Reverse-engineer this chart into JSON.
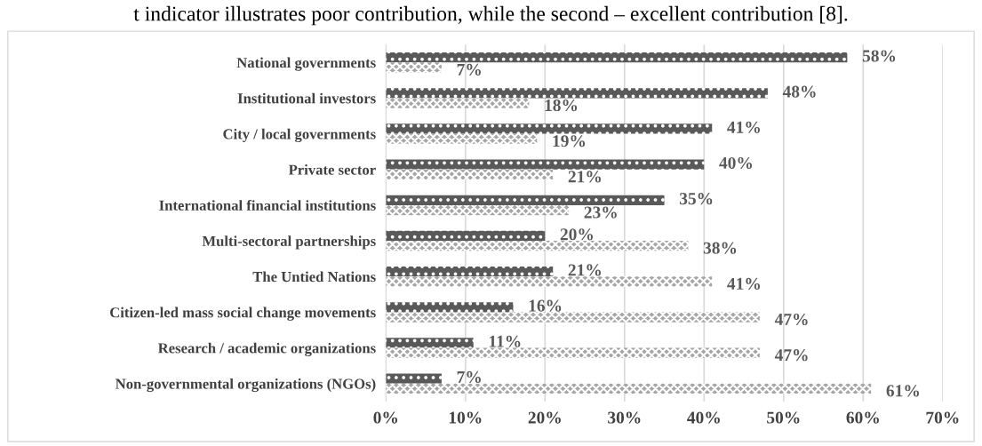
{
  "chart_data": {
    "type": "bar",
    "orientation": "horizontal",
    "categories": [
      "National governments",
      "Institutional investors",
      "City / local governments",
      "Private sector",
      "International financial institutions",
      "Multi-sectoral partnerships",
      "The Untied Nations",
      "Citizen-led mass social change movements",
      "Research / academic organizations",
      "Non-governmental organizations (NGOs)"
    ],
    "series": [
      {
        "color": "#595959",
        "values": [
          58,
          48,
          41,
          40,
          35,
          20,
          21,
          16,
          11,
          7
        ]
      },
      {
        "color": "#a6a6a6",
        "values": [
          7,
          18,
          19,
          21,
          23,
          38,
          41,
          47,
          47,
          61
        ]
      }
    ],
    "xlim": [
      0,
      70
    ],
    "xticks": [
      {
        "value": 0,
        "label": "0%"
      },
      {
        "value": 10,
        "label": "10%"
      },
      {
        "value": 20,
        "label": "20%"
      },
      {
        "value": 30,
        "label": "30%"
      },
      {
        "value": 40,
        "label": "40%"
      },
      {
        "value": 50,
        "label": "50%"
      },
      {
        "value": 60,
        "label": "60%"
      },
      {
        "value": 70,
        "label": "70%"
      }
    ],
    "value_labels": [
      [
        "58%",
        "48%",
        "41%",
        "40%",
        "35%",
        "20%",
        "21%",
        "16%",
        "11%",
        "7%"
      ],
      [
        "7%",
        "18%",
        "19%",
        "21%",
        "23%",
        "38%",
        "41%",
        "47%",
        "47%",
        "61%"
      ]
    ],
    "grid": "x",
    "legend": false,
    "annotations": [
      "t indicator illustrates poor contribution, while the second – excellent contribution [8]."
    ]
  }
}
